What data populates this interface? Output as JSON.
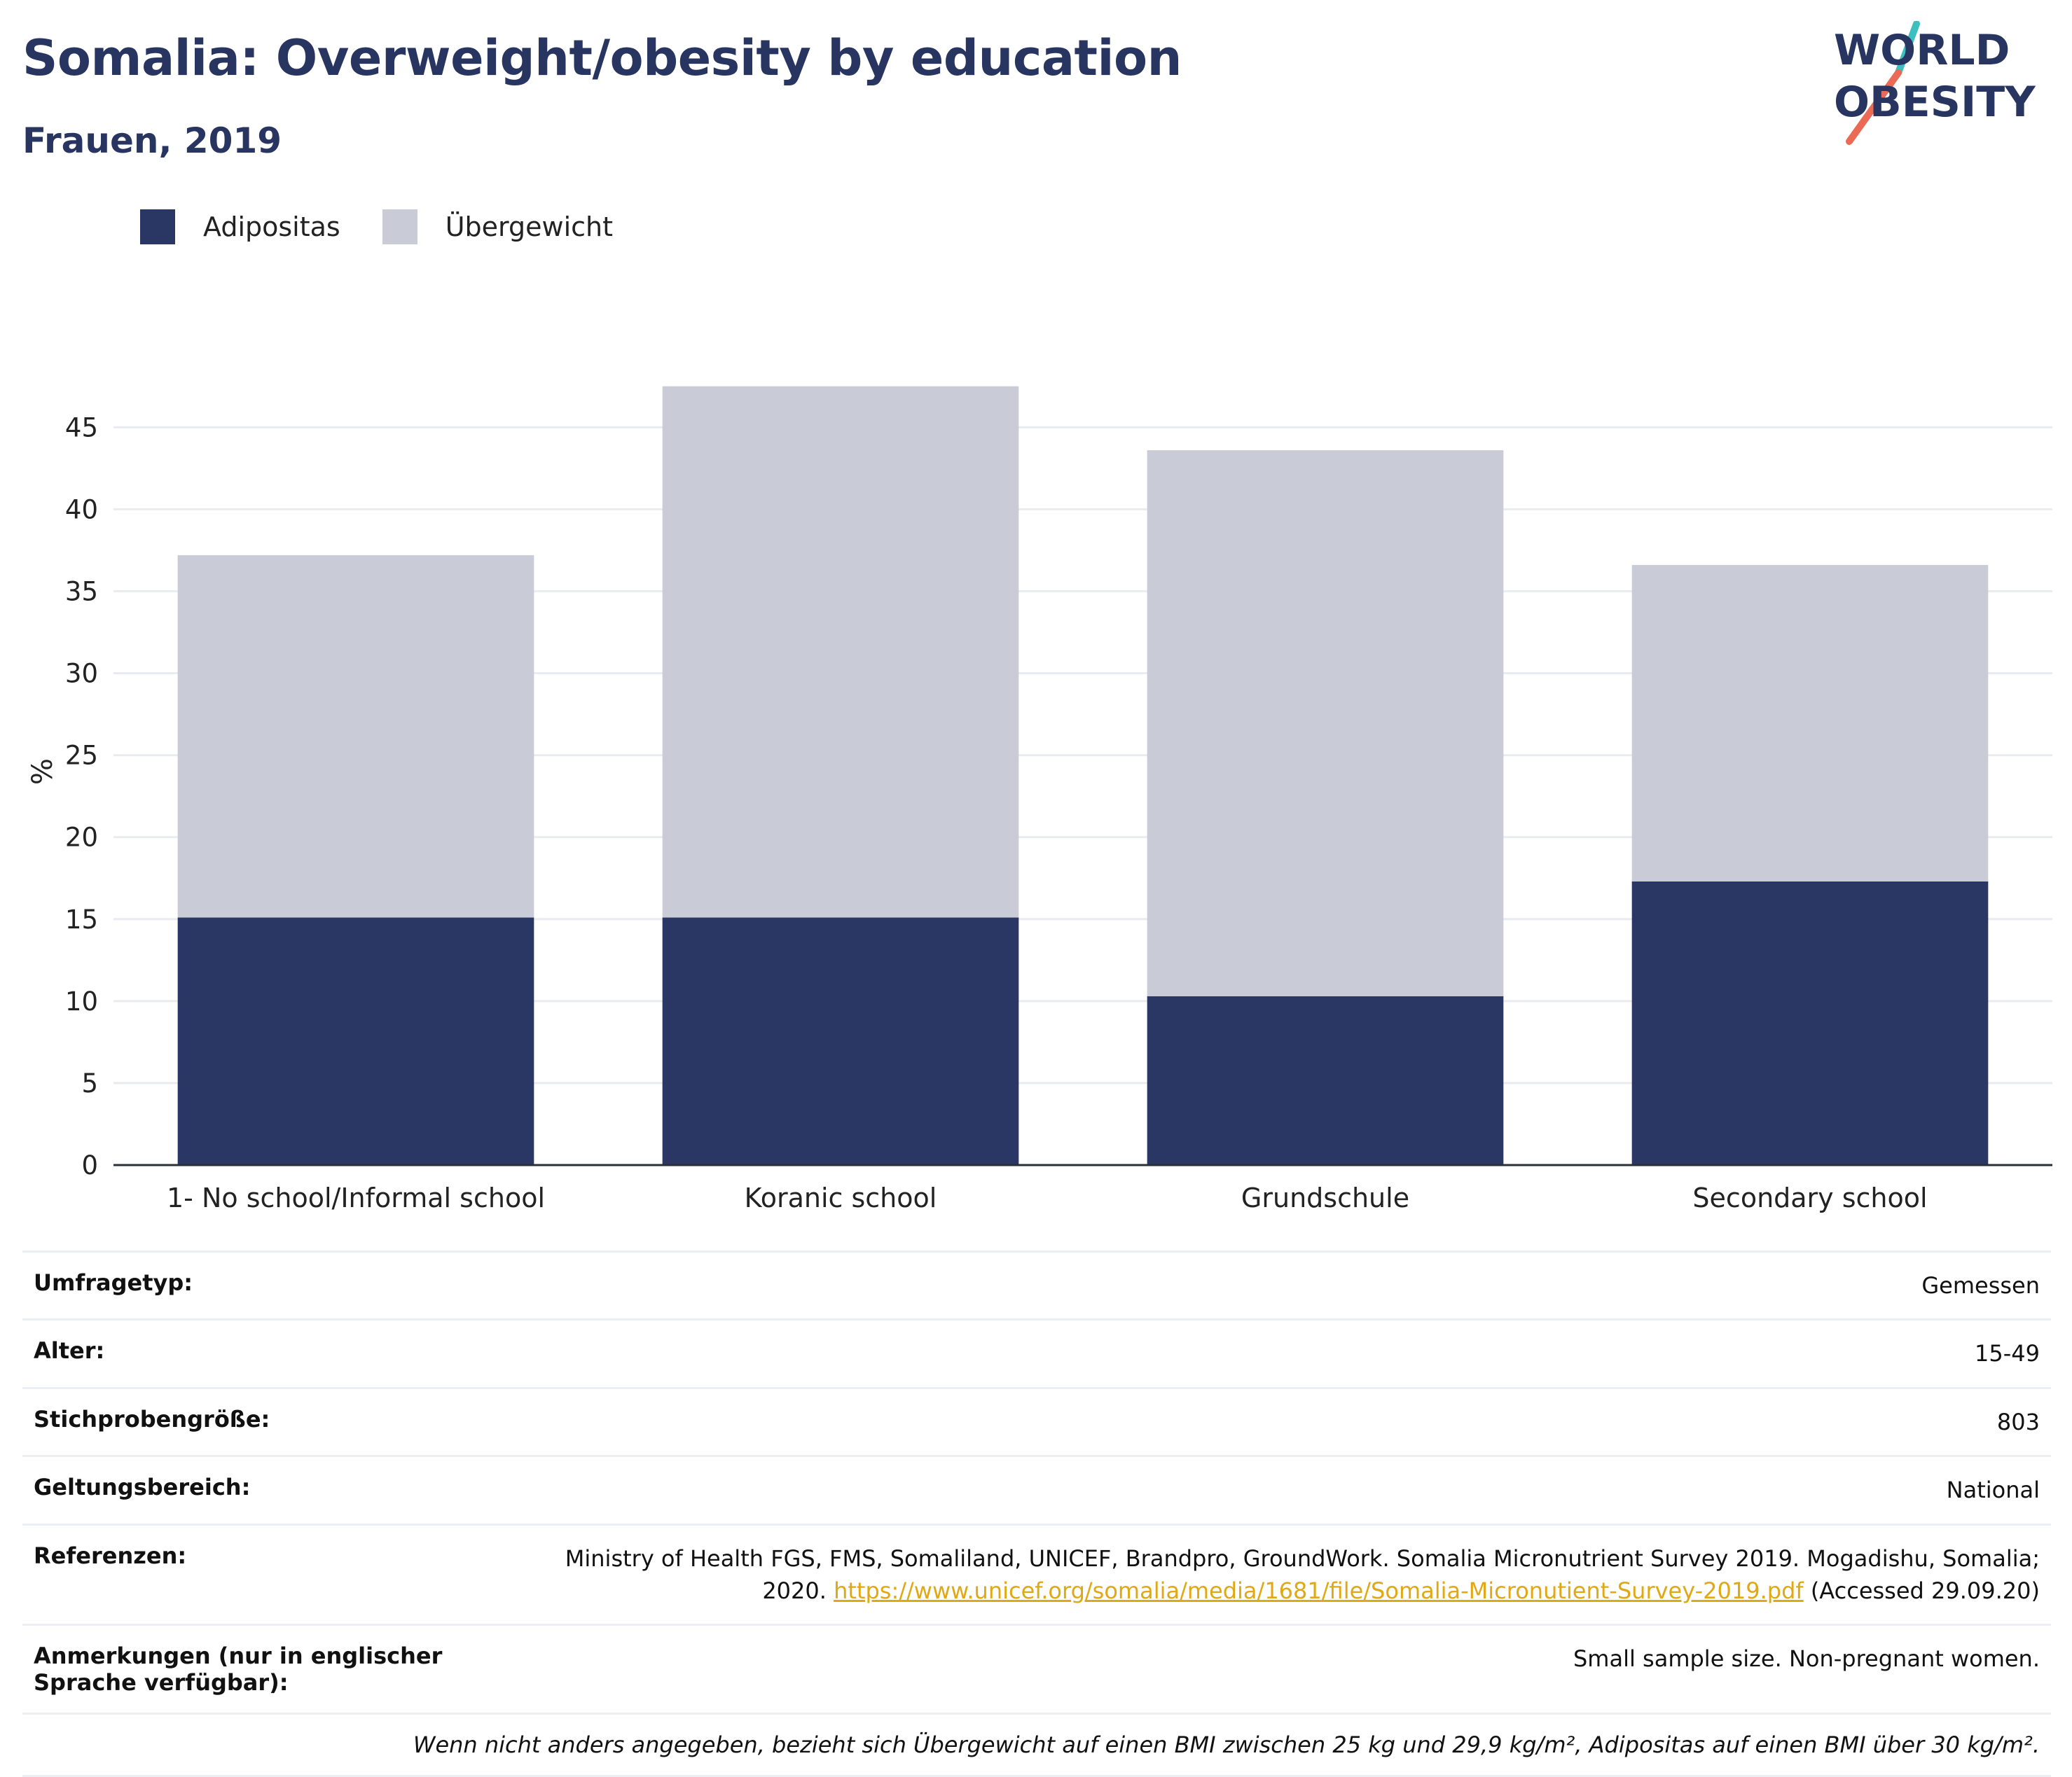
{
  "header": {
    "title": "Somalia: Overweight/obesity by education",
    "subtitle": "Frauen, 2019"
  },
  "logo": {
    "line1": "WORLD",
    "line2": "OBESITY",
    "colors": {
      "text": "#283561",
      "slash_teal": "#3dbfbf",
      "slash_coral": "#ea6a55"
    }
  },
  "legend": [
    {
      "label": "Adipositas",
      "color": "#2a3764"
    },
    {
      "label": "Übergewicht",
      "color": "#c9cbd6"
    }
  ],
  "chart_data": {
    "type": "bar",
    "stacked": true,
    "categories": [
      "1- No school/Informal school",
      "Koranic school",
      "Grundschule",
      "Secondary school"
    ],
    "series": [
      {
        "name": "Adipositas",
        "color": "#2a3764",
        "values": [
          15.1,
          15.1,
          10.3,
          17.3
        ]
      },
      {
        "name": "Übergewicht",
        "color": "#c9cbd6",
        "values": [
          22.1,
          32.4,
          33.3,
          19.3
        ]
      }
    ],
    "ylabel": "%",
    "ylim": [
      0,
      48
    ],
    "yticks": [
      0,
      5,
      10,
      15,
      20,
      25,
      30,
      35,
      40,
      45
    ],
    "grid": true,
    "legend_position": "top-left"
  },
  "info": {
    "rows": [
      {
        "key": "Umfragetyp:",
        "value": "Gemessen"
      },
      {
        "key": "Alter:",
        "value": "15-49"
      },
      {
        "key": "Stichprobengröße:",
        "value": "803"
      },
      {
        "key": "Geltungsbereich:",
        "value": "National"
      }
    ],
    "references": {
      "key": "Referenzen:",
      "text_line1": "Ministry of Health FGS, FMS, Somaliland, UNICEF, Brandpro, GroundWork. Somalia Micronutrient Survey 2019. Mogadishu, Somalia;",
      "text_line2_prefix": "2020.",
      "link": "https://www.unicef.org/somalia/media/1681/file/Somalia-Micronutient-Survey-2019.pdf",
      "text_suffix": "(Accessed 29.09.20)"
    },
    "notes": {
      "key": "Anmerkungen (nur in englischer Sprache verfügbar):",
      "value": "Small sample size. Non-pregnant women."
    },
    "footnote": "Wenn nicht anders angegeben, bezieht sich Übergewicht auf einen BMI zwischen 25 kg und 29,9 kg/m², Adipositas auf einen BMI über 30 kg/m²."
  }
}
